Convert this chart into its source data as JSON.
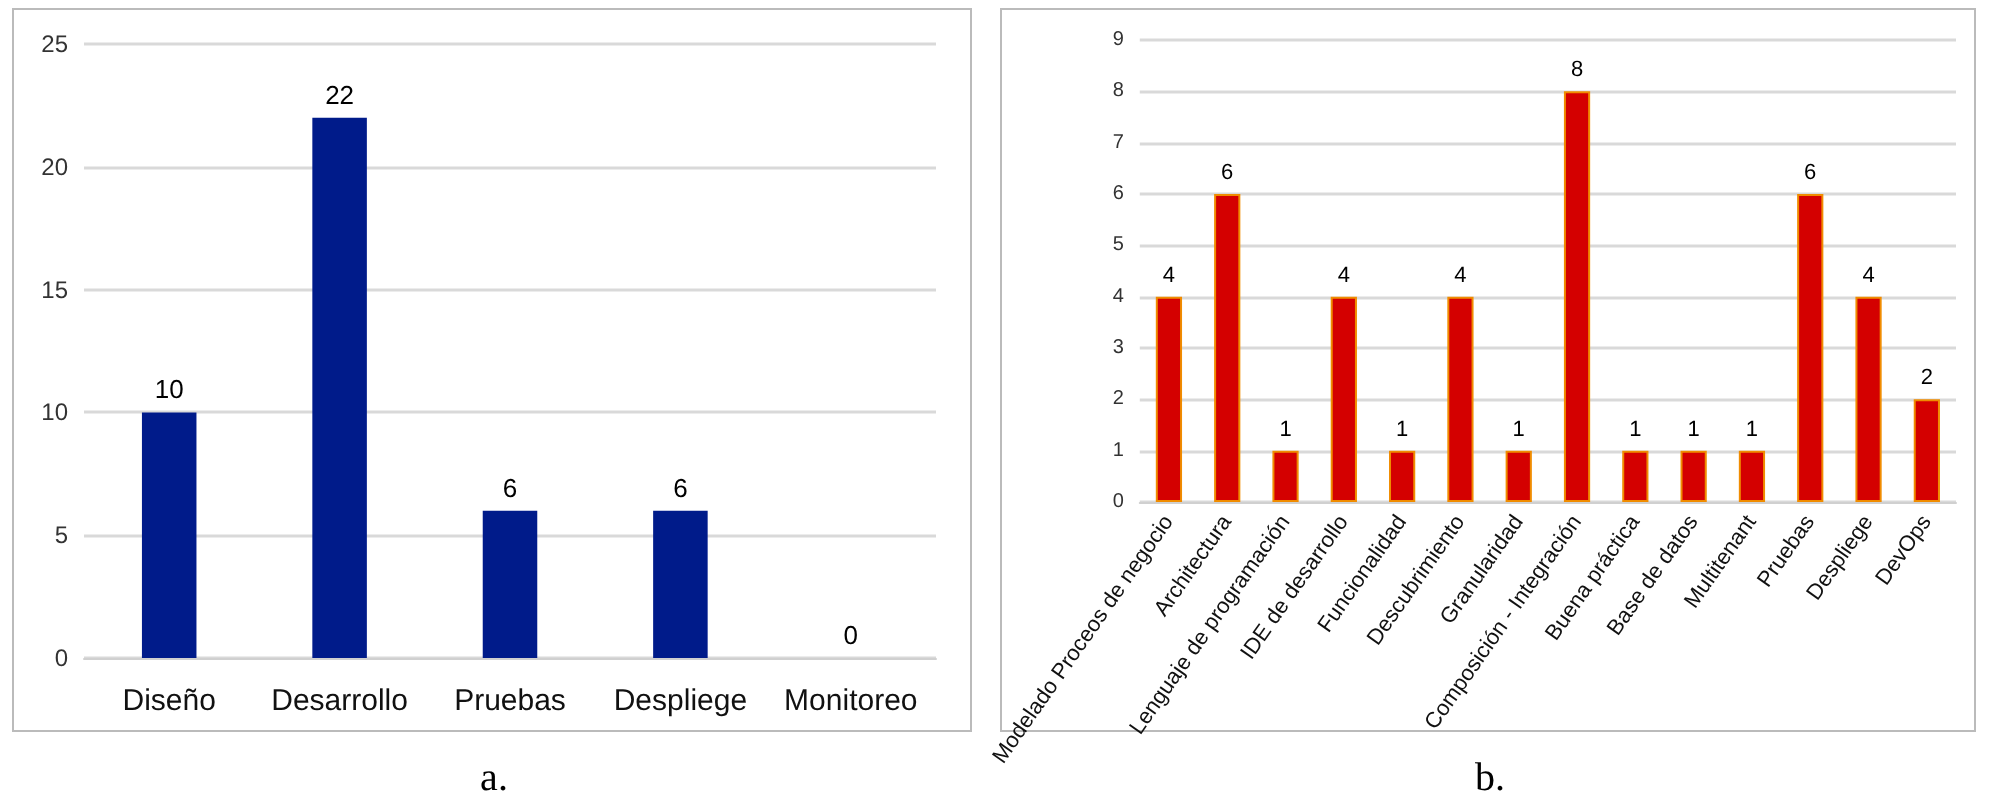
{
  "chart_data": [
    {
      "type": "bar",
      "categories": [
        "Diseño",
        "Desarrollo",
        "Pruebas",
        "Despliege",
        "Monitoreo"
      ],
      "values": [
        10,
        22,
        6,
        6,
        0
      ],
      "color": "#001b8a",
      "ylim": [
        0,
        25
      ],
      "yticks": [
        0,
        5,
        10,
        15,
        20,
        25
      ],
      "grid": "y",
      "data_labels": true,
      "annotations": [
        "a."
      ]
    },
    {
      "type": "bar",
      "categories": [
        "Modelado Proceos de negocio",
        "Architectura",
        "Lenguaje de programación",
        "IDE de desarrollo",
        "Funcionalidad",
        "Descubrimiento",
        "Granularidad",
        "Composición - Integración",
        "Buena práctica",
        "Base de datos",
        "Multitenant",
        "Pruebas",
        "Despliege",
        "DevOps"
      ],
      "values": [
        4,
        6,
        1,
        4,
        1,
        4,
        1,
        8,
        1,
        1,
        1,
        6,
        4,
        2
      ],
      "color": "#d40000",
      "ylim": [
        0,
        9
      ],
      "yticks": [
        0,
        1,
        2,
        3,
        4,
        5,
        6,
        7,
        8,
        9
      ],
      "grid": "y",
      "data_labels": true,
      "annotations": [
        "b."
      ]
    }
  ]
}
